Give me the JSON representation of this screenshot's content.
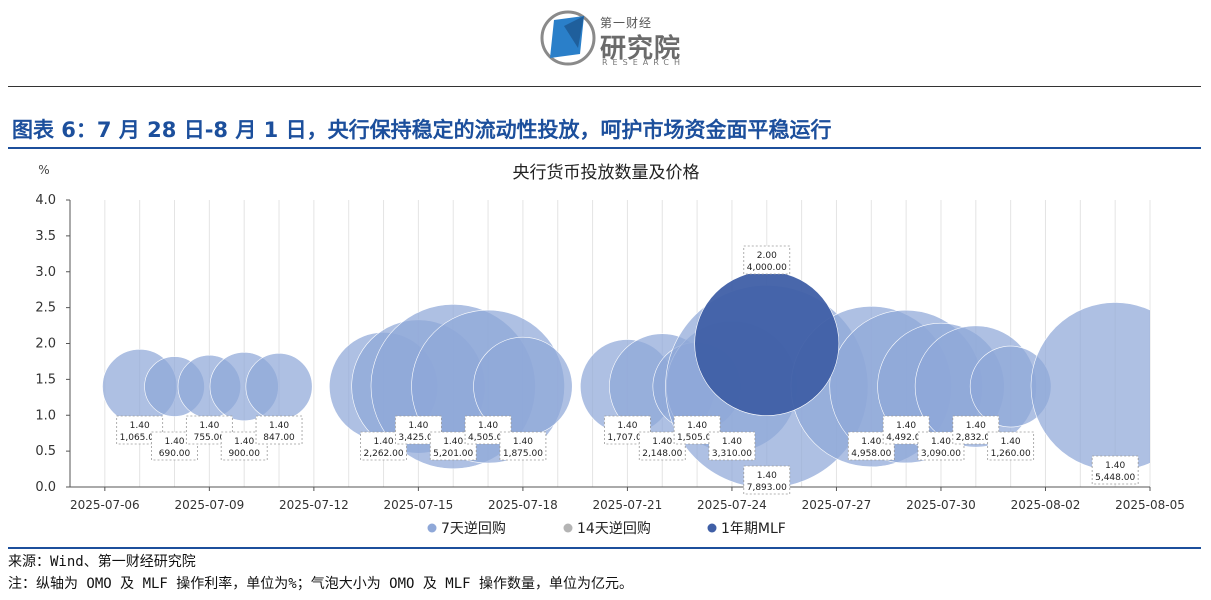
{
  "header": {
    "logo_top": "第一财经",
    "logo_main": "研究院",
    "logo_sub": "RESEARCH"
  },
  "figure_title": "图表 6：7 月 28 日-8 月 1 日，央行保持稳定的流动性投放，呵护市场资金面平稳运行",
  "chart_data": {
    "type": "scatter",
    "title": "央行货币投放数量及价格",
    "ylabel": "%",
    "ylim": [
      0.0,
      4.0
    ],
    "yticks": [
      "0.0",
      "0.5",
      "1.0",
      "1.5",
      "2.0",
      "2.5",
      "3.0",
      "3.5",
      "4.0"
    ],
    "xlim": [
      "2025-07-05",
      "2025-08-05"
    ],
    "xticks": [
      "2025-07-06",
      "2025-07-09",
      "2025-07-12",
      "2025-07-15",
      "2025-07-18",
      "2025-07-21",
      "2025-07-24",
      "2025-07-27",
      "2025-07-30",
      "2025-08-02",
      "2025-08-05"
    ],
    "grid": "vertical",
    "legend_position": "bottom",
    "series": [
      {
        "name": "7天逆回购",
        "color": "#8fa8d8",
        "points": [
          {
            "date": "2025-07-07",
            "rate": 1.4,
            "amount": 1065.0,
            "label_rate": "1.40",
            "label_amount": "1,065.00"
          },
          {
            "date": "2025-07-08",
            "rate": 1.4,
            "amount": 690.0,
            "label_rate": "1.40",
            "label_amount": "690.00"
          },
          {
            "date": "2025-07-09",
            "rate": 1.4,
            "amount": 755.0,
            "label_rate": "1.40",
            "label_amount": "755.00"
          },
          {
            "date": "2025-07-10",
            "rate": 1.4,
            "amount": 900.0,
            "label_rate": "1.40",
            "label_amount": "900.00"
          },
          {
            "date": "2025-07-11",
            "rate": 1.4,
            "amount": 847.0,
            "label_rate": "1.40",
            "label_amount": "847.00"
          },
          {
            "date": "2025-07-14",
            "rate": 1.4,
            "amount": 2262.0,
            "label_rate": "1.40",
            "label_amount": "2,262.00"
          },
          {
            "date": "2025-07-15",
            "rate": 1.4,
            "amount": 3425.0,
            "label_rate": "1.40",
            "label_amount": "3,425.00"
          },
          {
            "date": "2025-07-16",
            "rate": 1.4,
            "amount": 5201.0,
            "label_rate": "1.40",
            "label_amount": "5,201.00"
          },
          {
            "date": "2025-07-17",
            "rate": 1.4,
            "amount": 4505.0,
            "label_rate": "1.40",
            "label_amount": "4,505.00"
          },
          {
            "date": "2025-07-18",
            "rate": 1.4,
            "amount": 1875.0,
            "label_rate": "1.40",
            "label_amount": "1,875.00"
          },
          {
            "date": "2025-07-21",
            "rate": 1.4,
            "amount": 1707.0,
            "label_rate": "1.40",
            "label_amount": "1,707.00"
          },
          {
            "date": "2025-07-22",
            "rate": 1.4,
            "amount": 2148.0,
            "label_rate": "1.40",
            "label_amount": "2,148.00"
          },
          {
            "date": "2025-07-23",
            "rate": 1.4,
            "amount": 1505.0,
            "label_rate": "1.40",
            "label_amount": "1,505.00"
          },
          {
            "date": "2025-07-24",
            "rate": 1.4,
            "amount": 3310.0,
            "label_rate": "1.40",
            "label_amount": "3,310.00"
          },
          {
            "date": "2025-07-25",
            "rate": 1.4,
            "amount": 7893.0,
            "label_rate": "1.40",
            "label_amount": "7,893.00"
          },
          {
            "date": "2025-07-28",
            "rate": 1.4,
            "amount": 4958.0,
            "label_rate": "1.40",
            "label_amount": "4,958.00"
          },
          {
            "date": "2025-07-29",
            "rate": 1.4,
            "amount": 4492.0,
            "label_rate": "1.40",
            "label_amount": "4,492.00"
          },
          {
            "date": "2025-07-30",
            "rate": 1.4,
            "amount": 3090.0,
            "label_rate": "1.40",
            "label_amount": "3,090.00"
          },
          {
            "date": "2025-07-31",
            "rate": 1.4,
            "amount": 2832.0,
            "label_rate": "1.40",
            "label_amount": "2,832.00"
          },
          {
            "date": "2025-08-01",
            "rate": 1.4,
            "amount": 1260.0,
            "label_rate": "1.40",
            "label_amount": "1,260.00"
          },
          {
            "date": "2025-08-04",
            "rate": 1.4,
            "amount": 5448.0,
            "label_rate": "1.40",
            "label_amount": "5,448.00"
          }
        ]
      },
      {
        "name": "14天逆回购",
        "color": "#b4b4b4",
        "points": []
      },
      {
        "name": "1年期MLF",
        "color": "#3f5fa6",
        "points": [
          {
            "date": "2025-07-25",
            "rate": 2.0,
            "amount": 4000.0,
            "label_rate": "2.00",
            "label_amount": "4,000.00"
          }
        ]
      }
    ]
  },
  "footer": {
    "source": "来源：Wind、第一财经研究院",
    "note": "注：纵轴为 OMO 及 MLF 操作利率，单位为%；气泡大小为 OMO 及 MLF 操作数量，单位为亿元。"
  }
}
